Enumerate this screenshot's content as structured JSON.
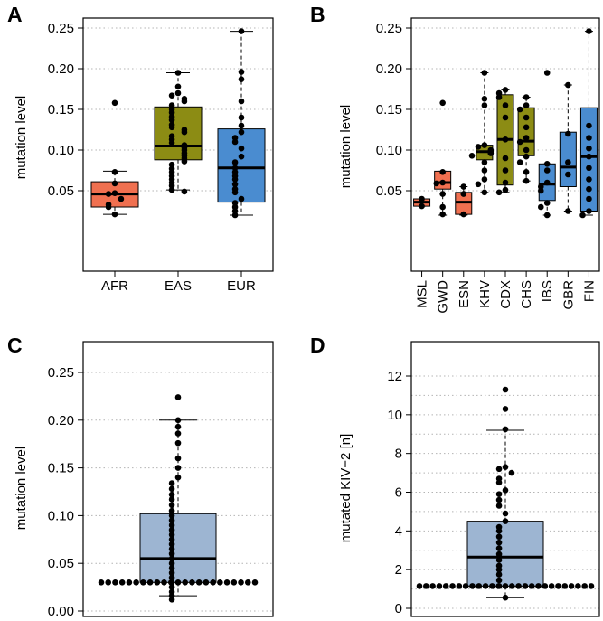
{
  "chart_data": [
    {
      "panel": "A",
      "type": "boxplot",
      "ylabel": "mutation level",
      "ylim": [
        0,
        0.25
      ],
      "yticks": [
        "0.05",
        "0.10",
        "0.15",
        "0.20",
        "0.25"
      ],
      "grid": "horizontal dotted",
      "categories": [
        "AFR",
        "EAS",
        "EUR"
      ],
      "colors": [
        "#f07050",
        "#8c8c14",
        "#4a8cd0"
      ],
      "boxes": [
        {
          "min": 0.021,
          "q1": 0.03,
          "median": 0.046,
          "q3": 0.061,
          "max": 0.074,
          "points": [
            0.158,
            0.073,
            0.059,
            0.047,
            0.046,
            0.04,
            0.033,
            0.03,
            0.021
          ]
        },
        {
          "min": 0.051,
          "q1": 0.088,
          "median": 0.105,
          "q3": 0.153,
          "max": 0.195,
          "points": [
            0.195,
            0.178,
            0.17,
            0.167,
            0.163,
            0.16,
            0.155,
            0.15,
            0.146,
            0.141,
            0.137,
            0.131,
            0.128,
            0.125,
            0.122,
            0.117,
            0.113,
            0.109,
            0.106,
            0.103,
            0.1,
            0.096,
            0.093,
            0.09,
            0.086,
            0.082,
            0.077,
            0.073,
            0.068,
            0.064,
            0.06,
            0.056,
            0.051,
            0.049
          ]
        },
        {
          "min": 0.02,
          "q1": 0.036,
          "median": 0.078,
          "q3": 0.126,
          "max": 0.246,
          "points": [
            0.246,
            0.196,
            0.187,
            0.16,
            0.14,
            0.13,
            0.122,
            0.115,
            0.11,
            0.102,
            0.092,
            0.085,
            0.078,
            0.073,
            0.068,
            0.064,
            0.058,
            0.052,
            0.048,
            0.04,
            0.035,
            0.03,
            0.025,
            0.02
          ]
        }
      ]
    },
    {
      "panel": "B",
      "type": "boxplot",
      "ylabel": "mutation level",
      "ylim": [
        0,
        0.25
      ],
      "yticks": [
        "0.05",
        "0.10",
        "0.15",
        "0.20",
        "0.25"
      ],
      "grid": "horizontal dotted",
      "categories": [
        "MSL",
        "GWD",
        "ESN",
        "KHV",
        "CDX",
        "CHS",
        "IBS",
        "GBR",
        "FIN"
      ],
      "colors": [
        "#f07050",
        "#f07050",
        "#f07050",
        "#8c8c14",
        "#8c8c14",
        "#8c8c14",
        "#4a8cd0",
        "#4a8cd0",
        "#4a8cd0"
      ],
      "boxes": [
        {
          "min": 0.031,
          "q1": 0.031,
          "median": 0.036,
          "q3": 0.04,
          "max": 0.04,
          "points": [
            0.04,
            0.031
          ]
        },
        {
          "min": 0.02,
          "q1": 0.052,
          "median": 0.06,
          "q3": 0.074,
          "max": 0.074,
          "points": [
            0.158,
            0.073,
            0.06,
            0.059,
            0.046,
            0.03,
            0.021
          ]
        },
        {
          "min": 0.02,
          "q1": 0.021,
          "median": 0.036,
          "q3": 0.048,
          "max": 0.055,
          "points": [
            0.055,
            0.046,
            0.021
          ]
        },
        {
          "min": 0.048,
          "q1": 0.088,
          "median": 0.098,
          "q3": 0.106,
          "max": 0.195,
          "points": [
            0.195,
            0.163,
            0.155,
            0.106,
            0.104,
            0.1,
            0.098,
            0.096,
            0.093,
            0.085,
            0.075,
            0.064,
            0.058,
            0.048
          ]
        },
        {
          "min": 0.048,
          "q1": 0.057,
          "median": 0.113,
          "q3": 0.168,
          "max": 0.174,
          "points": [
            0.174,
            0.17,
            0.165,
            0.155,
            0.14,
            0.113,
            0.09,
            0.075,
            0.06,
            0.051,
            0.048
          ]
        },
        {
          "min": 0.062,
          "q1": 0.093,
          "median": 0.111,
          "q3": 0.152,
          "max": 0.165,
          "points": [
            0.165,
            0.155,
            0.15,
            0.14,
            0.128,
            0.115,
            0.11,
            0.1,
            0.092,
            0.085,
            0.073,
            0.062
          ]
        },
        {
          "min": 0.02,
          "q1": 0.038,
          "median": 0.058,
          "q3": 0.083,
          "max": 0.083,
          "points": [
            0.195,
            0.083,
            0.075,
            0.06,
            0.055,
            0.05,
            0.035,
            0.03,
            0.02
          ]
        },
        {
          "min": 0.025,
          "q1": 0.055,
          "median": 0.079,
          "q3": 0.122,
          "max": 0.18,
          "points": [
            0.18,
            0.12,
            0.085,
            0.07,
            0.025
          ]
        },
        {
          "min": 0.02,
          "q1": 0.025,
          "median": 0.092,
          "q3": 0.152,
          "max": 0.246,
          "points": [
            0.246,
            0.13,
            0.115,
            0.102,
            0.092,
            0.078,
            0.064,
            0.052,
            0.04,
            0.025,
            0.02
          ]
        }
      ]
    },
    {
      "panel": "C",
      "type": "boxplot",
      "ylabel": "mutation level",
      "ylim": [
        0,
        0.25
      ],
      "yticks": [
        "0.00",
        "0.05",
        "0.10",
        "0.15",
        "0.20",
        "0.25"
      ],
      "grid": "horizontal dotted",
      "categories": [
        ""
      ],
      "colors": [
        "#9db5d2"
      ],
      "boxes": [
        {
          "min": 0.016,
          "q1": 0.03,
          "median": 0.055,
          "q3": 0.102,
          "max": 0.2,
          "points": [
            0.224,
            0.2,
            0.193,
            0.186,
            0.176,
            0.16,
            0.15,
            0.14,
            0.134,
            0.128,
            0.122,
            0.117,
            0.111,
            0.105,
            0.1,
            0.095,
            0.09,
            0.085,
            0.08,
            0.075,
            0.07,
            0.065,
            0.06,
            0.055,
            0.05,
            0.045,
            0.04,
            0.035,
            0.03,
            0.025,
            0.02,
            0.016,
            0.012
          ]
        }
      ]
    },
    {
      "panel": "D",
      "type": "boxplot",
      "ylabel": "mutated KIV−2 [n]",
      "ylim": [
        0,
        12
      ],
      "yticks": [
        "0",
        "2",
        "4",
        "6",
        "8",
        "10",
        "12"
      ],
      "grid": "horizontal dotted",
      "categories": [
        ""
      ],
      "colors": [
        "#9db5d2"
      ],
      "boxes": [
        {
          "min": 0.55,
          "q1": 1.15,
          "median": 2.65,
          "q3": 4.5,
          "max": 9.2,
          "points": [
            11.3,
            10.3,
            9.25,
            7.3,
            7.2,
            7.0,
            6.7,
            6.5,
            6.1,
            5.9,
            5.6,
            5.3,
            4.9,
            4.5,
            4.2,
            4.0,
            3.7,
            3.4,
            3.1,
            2.8,
            2.5,
            2.2,
            2.0,
            1.75,
            1.45,
            1.15,
            0.55
          ]
        }
      ]
    }
  ]
}
